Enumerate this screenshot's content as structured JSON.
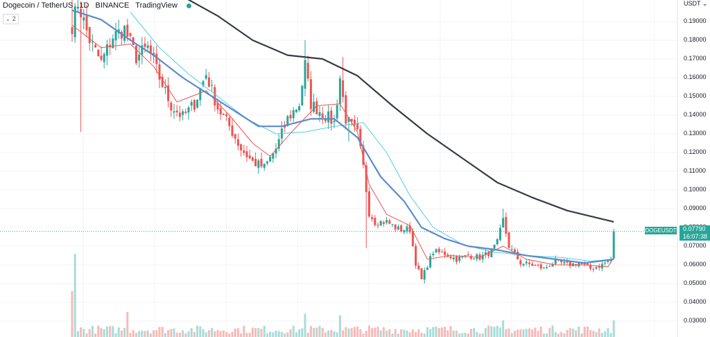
{
  "header": {
    "symbol": "Dogecoin / TetherUS",
    "interval": "1D",
    "exchange": "BINANCE",
    "source": "TradingView",
    "indicator_count": "2"
  },
  "colors": {
    "up": "#26a69a",
    "down": "#ef5350",
    "ma_fast": "#ef5350",
    "ma_light": "#4dd0e1",
    "ma_mid": "#5b8bc9",
    "ma_long": "#363a45"
  },
  "chart_data": {
    "type": "candlestick",
    "symbol": "DOGEUSDT",
    "currency": "USDT",
    "last_price": "0.07790",
    "countdown": "16:07:38",
    "y_ticks": [
      "0.19000",
      "0.18000",
      "0.17000",
      "0.16000",
      "0.15000",
      "0.14000",
      "0.13000",
      "0.12000",
      "0.11000",
      "0.10000",
      "0.09000",
      "0.08000",
      "0.07000",
      "0.06000",
      "0.05000",
      "0.04000",
      "0.03000"
    ],
    "ylim": [
      0.0265,
      0.2005
    ],
    "grid": true,
    "close_path": [
      {
        "i": 0,
        "v": 0.188
      },
      {
        "i": 2,
        "v": 0.2
      },
      {
        "i": 6,
        "v": 0.18
      },
      {
        "i": 10,
        "v": 0.168
      },
      {
        "i": 14,
        "v": 0.182
      },
      {
        "i": 18,
        "v": 0.186
      },
      {
        "i": 22,
        "v": 0.171
      },
      {
        "i": 26,
        "v": 0.176
      },
      {
        "i": 30,
        "v": 0.16
      },
      {
        "i": 34,
        "v": 0.145
      },
      {
        "i": 38,
        "v": 0.139
      },
      {
        "i": 42,
        "v": 0.146
      },
      {
        "i": 46,
        "v": 0.162
      },
      {
        "i": 50,
        "v": 0.144
      },
      {
        "i": 54,
        "v": 0.134
      },
      {
        "i": 58,
        "v": 0.122
      },
      {
        "i": 62,
        "v": 0.115
      },
      {
        "i": 66,
        "v": 0.112
      },
      {
        "i": 70,
        "v": 0.122
      },
      {
        "i": 74,
        "v": 0.138
      },
      {
        "i": 78,
        "v": 0.146
      },
      {
        "i": 80,
        "v": 0.167
      },
      {
        "i": 82,
        "v": 0.146
      },
      {
        "i": 86,
        "v": 0.141
      },
      {
        "i": 90,
        "v": 0.136
      },
      {
        "i": 92,
        "v": 0.16
      },
      {
        "i": 94,
        "v": 0.138
      },
      {
        "i": 98,
        "v": 0.13
      },
      {
        "i": 100,
        "v": 0.112
      },
      {
        "i": 102,
        "v": 0.088
      },
      {
        "i": 104,
        "v": 0.083
      },
      {
        "i": 108,
        "v": 0.083
      },
      {
        "i": 112,
        "v": 0.079
      },
      {
        "i": 116,
        "v": 0.079
      },
      {
        "i": 118,
        "v": 0.061
      },
      {
        "i": 120,
        "v": 0.052
      },
      {
        "i": 122,
        "v": 0.06
      },
      {
        "i": 124,
        "v": 0.067
      },
      {
        "i": 128,
        "v": 0.066
      },
      {
        "i": 132,
        "v": 0.063
      },
      {
        "i": 136,
        "v": 0.065
      },
      {
        "i": 140,
        "v": 0.064
      },
      {
        "i": 144,
        "v": 0.067
      },
      {
        "i": 146,
        "v": 0.072
      },
      {
        "i": 148,
        "v": 0.084
      },
      {
        "i": 150,
        "v": 0.07
      },
      {
        "i": 154,
        "v": 0.061
      },
      {
        "i": 158,
        "v": 0.06
      },
      {
        "i": 162,
        "v": 0.058
      },
      {
        "i": 166,
        "v": 0.062
      },
      {
        "i": 170,
        "v": 0.06
      },
      {
        "i": 174,
        "v": 0.061
      },
      {
        "i": 178,
        "v": 0.058
      },
      {
        "i": 182,
        "v": 0.06
      },
      {
        "i": 185,
        "v": 0.063
      },
      {
        "i": 186,
        "v": 0.0779
      }
    ],
    "wick_spikes": [
      {
        "i": 3,
        "low": 0.131
      },
      {
        "i": 0,
        "high": 0.205
      },
      {
        "i": 80,
        "high": 0.18
      },
      {
        "i": 93,
        "high": 0.171
      },
      {
        "i": 95,
        "low": 0.126
      },
      {
        "i": 101,
        "low": 0.069
      },
      {
        "i": 148,
        "high": 0.09
      },
      {
        "i": 121,
        "low": 0.05
      }
    ],
    "ma_long": [
      {
        "i": 38,
        "v": 0.205
      },
      {
        "i": 50,
        "v": 0.193
      },
      {
        "i": 62,
        "v": 0.18
      },
      {
        "i": 74,
        "v": 0.172
      },
      {
        "i": 86,
        "v": 0.17
      },
      {
        "i": 98,
        "v": 0.161
      },
      {
        "i": 110,
        "v": 0.145
      },
      {
        "i": 122,
        "v": 0.13
      },
      {
        "i": 134,
        "v": 0.117
      },
      {
        "i": 146,
        "v": 0.104
      },
      {
        "i": 158,
        "v": 0.096
      },
      {
        "i": 170,
        "v": 0.089
      },
      {
        "i": 186,
        "v": 0.083
      }
    ],
    "ma_mid": [
      {
        "i": 0,
        "v": 0.196
      },
      {
        "i": 10,
        "v": 0.191
      },
      {
        "i": 20,
        "v": 0.18
      },
      {
        "i": 28,
        "v": 0.172
      },
      {
        "i": 38,
        "v": 0.16
      },
      {
        "i": 46,
        "v": 0.152
      },
      {
        "i": 56,
        "v": 0.142
      },
      {
        "i": 64,
        "v": 0.134
      },
      {
        "i": 72,
        "v": 0.134
      },
      {
        "i": 82,
        "v": 0.138
      },
      {
        "i": 90,
        "v": 0.138
      },
      {
        "i": 98,
        "v": 0.128
      },
      {
        "i": 106,
        "v": 0.107
      },
      {
        "i": 114,
        "v": 0.094
      },
      {
        "i": 120,
        "v": 0.08
      },
      {
        "i": 128,
        "v": 0.074
      },
      {
        "i": 136,
        "v": 0.07
      },
      {
        "i": 146,
        "v": 0.068
      },
      {
        "i": 156,
        "v": 0.065
      },
      {
        "i": 166,
        "v": 0.063
      },
      {
        "i": 176,
        "v": 0.061
      },
      {
        "i": 186,
        "v": 0.063
      }
    ],
    "ma_light": [
      {
        "i": 20,
        "v": 0.195
      },
      {
        "i": 30,
        "v": 0.176
      },
      {
        "i": 40,
        "v": 0.162
      },
      {
        "i": 50,
        "v": 0.15
      },
      {
        "i": 60,
        "v": 0.138
      },
      {
        "i": 70,
        "v": 0.13
      },
      {
        "i": 80,
        "v": 0.131
      },
      {
        "i": 90,
        "v": 0.134
      },
      {
        "i": 100,
        "v": 0.136
      },
      {
        "i": 108,
        "v": 0.12
      },
      {
        "i": 116,
        "v": 0.097
      },
      {
        "i": 124,
        "v": 0.08
      },
      {
        "i": 134,
        "v": 0.071
      },
      {
        "i": 144,
        "v": 0.067
      },
      {
        "i": 156,
        "v": 0.065
      },
      {
        "i": 168,
        "v": 0.064
      },
      {
        "i": 178,
        "v": 0.062
      },
      {
        "i": 186,
        "v": 0.063
      }
    ],
    "ma_fast": [
      {
        "i": 0,
        "v": 0.188
      },
      {
        "i": 10,
        "v": 0.176
      },
      {
        "i": 20,
        "v": 0.178
      },
      {
        "i": 28,
        "v": 0.166
      },
      {
        "i": 36,
        "v": 0.147
      },
      {
        "i": 46,
        "v": 0.153
      },
      {
        "i": 54,
        "v": 0.14
      },
      {
        "i": 62,
        "v": 0.125
      },
      {
        "i": 68,
        "v": 0.118
      },
      {
        "i": 76,
        "v": 0.132
      },
      {
        "i": 84,
        "v": 0.145
      },
      {
        "i": 92,
        "v": 0.146
      },
      {
        "i": 98,
        "v": 0.131
      },
      {
        "i": 102,
        "v": 0.103
      },
      {
        "i": 108,
        "v": 0.087
      },
      {
        "i": 116,
        "v": 0.081
      },
      {
        "i": 122,
        "v": 0.063
      },
      {
        "i": 130,
        "v": 0.065
      },
      {
        "i": 140,
        "v": 0.064
      },
      {
        "i": 148,
        "v": 0.07
      },
      {
        "i": 156,
        "v": 0.063
      },
      {
        "i": 166,
        "v": 0.06
      },
      {
        "i": 176,
        "v": 0.06
      },
      {
        "i": 184,
        "v": 0.059
      },
      {
        "i": 186,
        "v": 0.064
      }
    ],
    "volume_spikes": [
      {
        "i": 1,
        "v": 1.0
      },
      {
        "i": 0,
        "v": 0.55
      },
      {
        "i": 19,
        "v": 0.3
      },
      {
        "i": 80,
        "v": 0.28
      },
      {
        "i": 92,
        "v": 0.26
      },
      {
        "i": 148,
        "v": 0.2
      },
      {
        "i": 186,
        "v": 0.2
      }
    ]
  }
}
